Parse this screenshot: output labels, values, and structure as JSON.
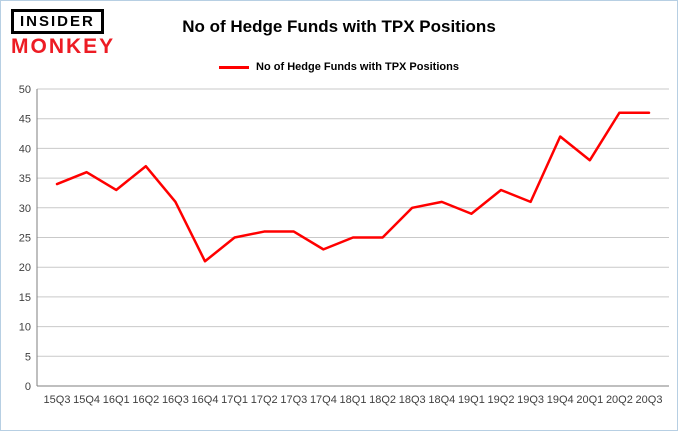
{
  "header": {
    "logo_line1": "INSIDER",
    "logo_line2": "MONKEY",
    "title": "No of Hedge Funds with TPX Positions"
  },
  "legend": {
    "label": "No of Hedge Funds with TPX Positions"
  },
  "chart_data": {
    "type": "line",
    "title": "No of Hedge Funds with TPX Positions",
    "categories": [
      "15Q3",
      "15Q4",
      "16Q1",
      "16Q2",
      "16Q3",
      "16Q4",
      "17Q1",
      "17Q2",
      "17Q3",
      "17Q4",
      "18Q1",
      "18Q2",
      "18Q3",
      "18Q4",
      "19Q1",
      "19Q2",
      "19Q3",
      "19Q4",
      "20Q1",
      "20Q2",
      "20Q3"
    ],
    "series": [
      {
        "name": "No of Hedge Funds with TPX Positions",
        "color": "#ff0000",
        "values": [
          34,
          36,
          33,
          37,
          31,
          21,
          25,
          26,
          26,
          23,
          25,
          25,
          30,
          31,
          29,
          33,
          31,
          42,
          38,
          46,
          46
        ]
      }
    ],
    "xlabel": "",
    "ylabel": "",
    "ylim": [
      0,
      50
    ],
    "ytick_step": 5,
    "grid": true,
    "legend_position": "top"
  },
  "colors": {
    "line": "#ff0000",
    "logo_red": "#ed1c24",
    "frame_border": "#b7cfe3",
    "gridline": "#c9c9c9",
    "axis": "#7f7f7f",
    "tick_text": "#3f3f3f"
  }
}
